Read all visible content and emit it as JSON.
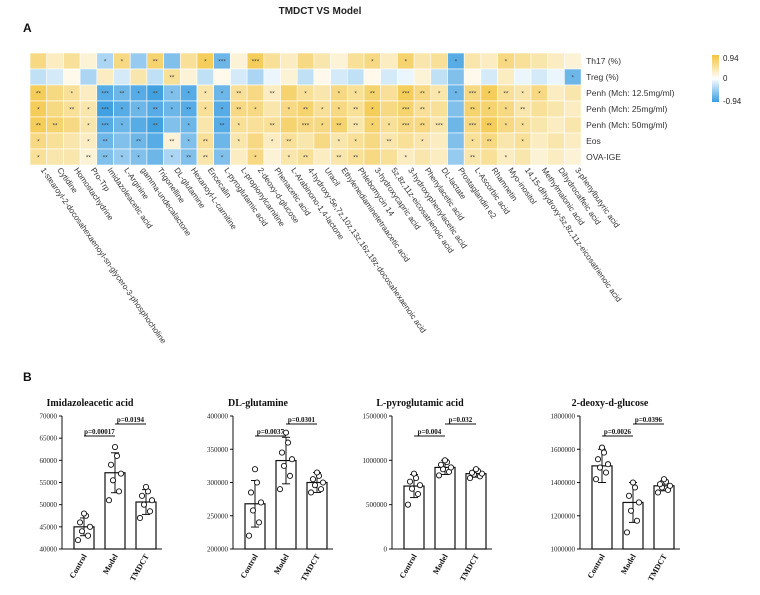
{
  "figure": {
    "title": "TMDCT VS Model",
    "panel_a_label": "A",
    "panel_b_label": "B",
    "colors": {
      "pos": "#f2c43d",
      "mid": "#ffffff",
      "neg": "#3a9de0"
    }
  },
  "chart_data": [
    {
      "type": "heatmap",
      "title": "TMDCT VS Model",
      "rows": [
        "Th17 (%)",
        "Treg (%)",
        "Penh (Mch: 12.5mg/ml)",
        "Penh (Mch: 25mg/ml)",
        "Penh (Mch: 50mg/ml)",
        "Eos",
        "OVA-IGE"
      ],
      "columns": [
        "1-stearoyl-2-docosahexaenoyl-sn-glycero-3-phosphocholine",
        "Cytidine",
        "Homostachydrine",
        "Pro-Trp",
        "Imidazoleacetic acid",
        "L-Arginine",
        "gamma-undecalactone",
        "Trigonelline",
        "DL-glutamine",
        "Hexanoyl-L-carnitine",
        "Encecalin",
        "L-pyroglutamic acid",
        "L-propionylcarnitine",
        "2-deoxy-d-glucose",
        "Phenacetic acid",
        "L-Arabinono-1,4-lactone",
        "4-hydroxy-5e,7z,10z,13z,16z,19z-docosahexaenoic acid",
        "Uracil",
        "Ethylenediaminetetraacetic acid",
        "Phlebomycin 14",
        "3-hydroxycapric acid",
        "5z,8z,11z-eicosatrienoic acid",
        "3-hydroxyphenylacetic acid",
        "Phenylacetic acid",
        "DL-lactate",
        "Prostaglandin e2",
        "L-Ascorbic acid",
        "Rhamnetin",
        "Myo-inositol",
        "14,15-dihydroxy-5z,8z,11z-eicosatrienoic acid",
        "Methylmalonic acid",
        "Dihydrocaffeic acid",
        "3-phenylbutyric acid"
      ],
      "values": [
        [
          0.6,
          0.3,
          0.5,
          0.2,
          -0.4,
          0.6,
          -0.5,
          0.7,
          -0.6,
          0.5,
          0.8,
          -0.7,
          0.2,
          0.8,
          0.5,
          0.3,
          0.6,
          0.4,
          0.2,
          0.5,
          0.6,
          0.3,
          0.7,
          0.4,
          0.5,
          -0.8,
          0.4,
          0.3,
          0.6,
          0.5,
          0.4,
          0.3,
          0.2
        ],
        [
          -0.3,
          -0.2,
          0.1,
          -0.4,
          0.3,
          -0.2,
          0.4,
          -0.3,
          0.5,
          0.2,
          -0.3,
          0.1,
          -0.2,
          -0.4,
          -0.1,
          0.2,
          -0.3,
          0.1,
          -0.2,
          -0.3,
          0.1,
          -0.2,
          -0.1,
          0.2,
          -0.3,
          -0.6,
          0.1,
          -0.2,
          0.3,
          -0.1,
          -0.2,
          -0.1,
          -0.7
        ],
        [
          0.8,
          0.6,
          0.5,
          0.3,
          -0.8,
          -0.7,
          -0.8,
          -0.9,
          -0.6,
          -0.8,
          0.4,
          -0.7,
          0.5,
          0.6,
          0.3,
          0.7,
          0.5,
          0.4,
          0.6,
          0.5,
          0.7,
          0.5,
          0.8,
          0.6,
          0.4,
          -0.7,
          0.6,
          0.8,
          0.5,
          0.4,
          0.6,
          0.3,
          0.4
        ],
        [
          0.8,
          0.6,
          0.5,
          0.4,
          -0.9,
          -0.8,
          -0.7,
          -0.8,
          -0.7,
          -0.8,
          0.5,
          -0.8,
          0.6,
          0.6,
          0.4,
          0.6,
          0.7,
          0.5,
          0.6,
          0.5,
          0.8,
          0.6,
          0.7,
          0.5,
          0.5,
          -0.6,
          0.7,
          0.7,
          0.6,
          0.4,
          0.5,
          0.4,
          0.3
        ],
        [
          0.8,
          0.7,
          0.6,
          0.4,
          -0.8,
          -0.7,
          -0.8,
          -0.9,
          -0.6,
          -0.7,
          0.4,
          -0.8,
          0.5,
          0.5,
          0.5,
          0.7,
          0.6,
          0.6,
          0.7,
          0.4,
          0.7,
          0.5,
          0.6,
          0.6,
          0.4,
          -0.7,
          0.6,
          0.8,
          0.6,
          0.5,
          0.4,
          0.3,
          0.4
        ],
        [
          0.6,
          0.5,
          0.4,
          0.3,
          -0.7,
          -0.6,
          -0.7,
          -0.8,
          0.2,
          -0.6,
          0.5,
          -0.7,
          0.4,
          0.6,
          0.3,
          0.5,
          0.4,
          0.6,
          0.4,
          0.5,
          0.6,
          0.4,
          0.5,
          0.4,
          0.3,
          -0.6,
          0.5,
          0.6,
          0.4,
          0.5,
          0.3,
          0.4,
          0.3
        ],
        [
          0.5,
          0.4,
          0.4,
          0.2,
          -0.6,
          -0.5,
          -0.6,
          -0.7,
          -0.4,
          -0.6,
          0.4,
          -0.6,
          0.3,
          0.6,
          0.2,
          0.4,
          0.5,
          0.3,
          0.4,
          0.5,
          0.6,
          0.5,
          0.3,
          0.4,
          0.3,
          -0.5,
          0.4,
          0.5,
          0.3,
          0.4,
          0.2,
          0.3,
          0.2
        ]
      ],
      "significance": [
        [
          "",
          "",
          "",
          "",
          "*",
          "*",
          "",
          "**",
          "",
          "",
          "*",
          "***",
          "",
          "***",
          "",
          "",
          "",
          "",
          "",
          "",
          "*",
          "",
          "*",
          "",
          "",
          "*",
          "",
          "",
          "*",
          "",
          "",
          "",
          ""
        ],
        [
          "",
          "",
          "",
          "",
          "",
          "",
          "",
          "",
          "**",
          "",
          "",
          "",
          "",
          "",
          "",
          "",
          "",
          "",
          "",
          "",
          "",
          "",
          "",
          "",
          "",
          "",
          "",
          "",
          "",
          "",
          "",
          "",
          "*"
        ],
        [
          "**",
          "",
          "*",
          "",
          "***",
          "**",
          "*",
          "**",
          "*",
          "*",
          "*",
          "*",
          "**",
          "",
          "**",
          "",
          "*",
          "",
          "*",
          "*",
          "**",
          "",
          "***",
          "**",
          "*",
          "*",
          "***",
          "*",
          "**",
          "*",
          "*",
          "",
          ""
        ],
        [
          "*",
          "",
          "**",
          "*",
          "***",
          "*",
          "*",
          "**",
          "*",
          "**",
          "*",
          "*",
          "**",
          "*",
          "",
          "*",
          "**",
          "*",
          "*",
          "**",
          "*",
          "",
          "***",
          "**",
          "",
          "",
          "**",
          "*",
          "*",
          "**",
          "",
          "",
          ""
        ],
        [
          "**",
          "**",
          "",
          "*",
          "***",
          "*",
          "",
          "**",
          "",
          "*",
          "",
          "**",
          "*",
          "",
          "**",
          "",
          "***",
          "*",
          "**",
          "**",
          "*",
          "*",
          "***",
          "**",
          "***",
          "",
          "***",
          "**",
          "*",
          "*",
          "",
          "",
          ""
        ],
        [
          "*",
          "",
          "",
          "*",
          "**",
          "",
          "**",
          "",
          "**",
          "*",
          "**",
          "",
          "*",
          "",
          "*",
          "**",
          "",
          "",
          "*",
          "*",
          "",
          "**",
          "",
          "*",
          "",
          "",
          "*",
          "**",
          "",
          "*",
          "",
          "",
          ""
        ],
        [
          "*",
          "",
          "",
          "**",
          "**",
          "*",
          "*",
          "",
          "*",
          "**",
          "**",
          "*",
          "",
          "*",
          "",
          "*",
          "**",
          "",
          "**",
          "**",
          "",
          "",
          "*",
          "",
          "",
          "",
          "**",
          "",
          "*",
          "",
          "",
          "",
          ""
        ]
      ],
      "legend": {
        "max_label": "0.94",
        "mid_label": "0",
        "min_label": "-0.94",
        "range": [
          -0.94,
          0.94
        ]
      }
    },
    {
      "type": "bar",
      "title": "Imidazoleacetic acid",
      "categories": [
        "Control",
        "Model",
        "TMDCT"
      ],
      "values": [
        45000,
        57200,
        50600
      ],
      "errors": [
        2000,
        4500,
        2800
      ],
      "points": [
        [
          42000,
          43000,
          44000,
          45000,
          46000,
          47500,
          48000
        ],
        [
          51000,
          53000,
          55500,
          57000,
          59000,
          61000,
          63000
        ],
        [
          47000,
          48500,
          50000,
          51000,
          52000,
          53000,
          54000
        ]
      ],
      "ylim": [
        40000,
        70000
      ],
      "yticks": [
        40000,
        45000,
        50000,
        55000,
        60000,
        65000,
        70000
      ],
      "annotations": [
        {
          "from": 0,
          "to": 1,
          "label": "p=0.00017"
        },
        {
          "from": 1,
          "to": 2,
          "label": "p=0.0194"
        }
      ]
    },
    {
      "type": "bar",
      "title": "DL-glutamine",
      "categories": [
        "Control",
        "Model",
        "TMDCT"
      ],
      "values": [
        268000,
        333000,
        300000
      ],
      "errors": [
        35000,
        35000,
        15000
      ],
      "points": [
        [
          220000,
          240000,
          258000,
          270000,
          285000,
          300000,
          320000
        ],
        [
          290000,
          310000,
          325000,
          335000,
          345000,
          360000,
          375000
        ],
        [
          285000,
          290000,
          296000,
          300000,
          305000,
          310000,
          315000
        ]
      ],
      "ylim": [
        200000,
        400000
      ],
      "yticks": [
        200000,
        250000,
        300000,
        350000,
        400000
      ],
      "annotations": [
        {
          "from": 0,
          "to": 1,
          "label": "p=0.0037"
        },
        {
          "from": 1,
          "to": 2,
          "label": "p=0.0301"
        }
      ]
    },
    {
      "type": "bar",
      "title": "L-pyroglutamic acid",
      "categories": [
        "Control",
        "Model",
        "TMDCT"
      ],
      "values": [
        710000,
        920000,
        850000
      ],
      "errors": [
        130000,
        80000,
        40000
      ],
      "points": [
        [
          500000,
          620000,
          680000,
          720000,
          760000,
          800000,
          850000
        ],
        [
          830000,
          870000,
          900000,
          920000,
          950000,
          980000,
          1000000
        ],
        [
          800000,
          820000,
          840000,
          850000,
          860000,
          880000,
          900000
        ]
      ],
      "ylim": [
        0,
        1500000
      ],
      "yticks": [
        0,
        500000,
        1000000,
        1500000
      ],
      "annotations": [
        {
          "from": 0,
          "to": 1,
          "label": "p=0.004"
        },
        {
          "from": 1,
          "to": 2,
          "label": "p=0.032"
        }
      ]
    },
    {
      "type": "bar",
      "title": "2-deoxy-d-glucose",
      "categories": [
        "Control",
        "Model",
        "TMDCT"
      ],
      "values": [
        1500000,
        1280000,
        1380000
      ],
      "errors": [
        100000,
        120000,
        30000
      ],
      "points": [
        [
          1420000,
          1460000,
          1490000,
          1510000,
          1540000,
          1580000,
          1610000
        ],
        [
          1100000,
          1170000,
          1230000,
          1280000,
          1320000,
          1370000,
          1400000
        ],
        [
          1340000,
          1355000,
          1370000,
          1380000,
          1390000,
          1405000,
          1420000
        ]
      ],
      "ylim": [
        1000000,
        1800000
      ],
      "yticks": [
        1000000,
        1200000,
        1400000,
        1600000,
        1800000
      ],
      "annotations": [
        {
          "from": 0,
          "to": 1,
          "label": "p=0.0026"
        },
        {
          "from": 1,
          "to": 2,
          "label": "p=0.0396"
        }
      ]
    }
  ]
}
